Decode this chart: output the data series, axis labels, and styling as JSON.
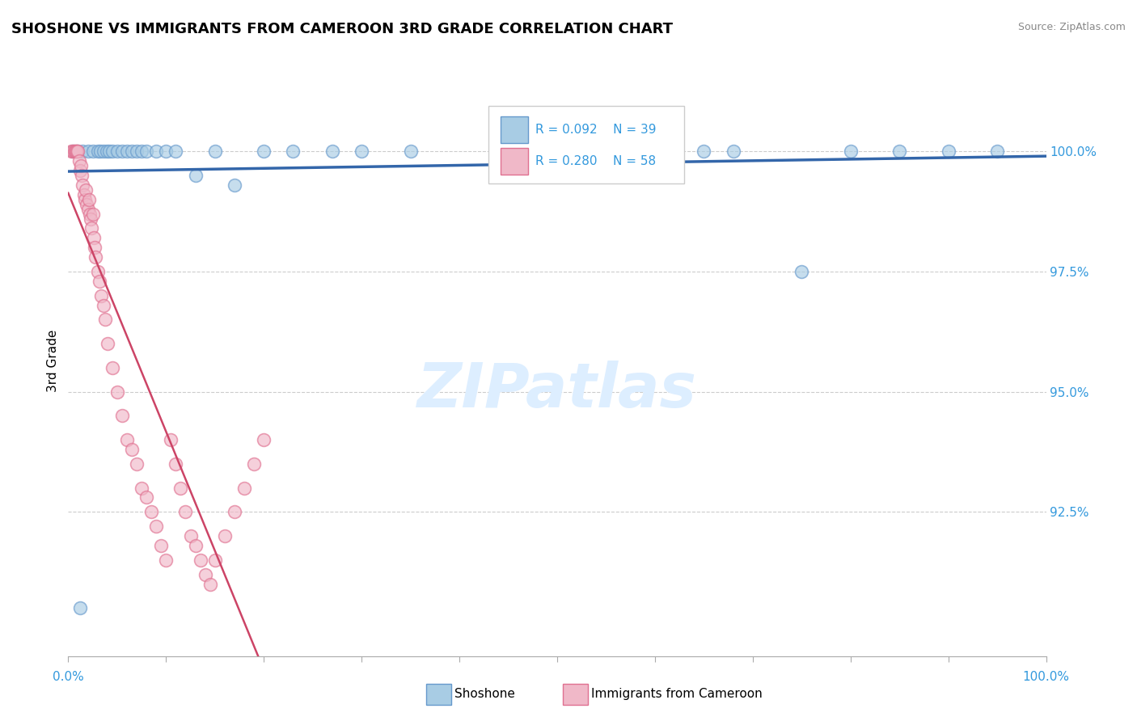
{
  "title": "SHOSHONE VS IMMIGRANTS FROM CAMEROON 3RD GRADE CORRELATION CHART",
  "source": "Source: ZipAtlas.com",
  "ylabel": "3rd Grade",
  "xlim": [
    0.0,
    100.0
  ],
  "ylim": [
    89.5,
    101.8
  ],
  "yticks": [
    92.5,
    95.0,
    97.5,
    100.0
  ],
  "ytick_labels": [
    "92.5%",
    "95.0%",
    "97.5%",
    "100.0%"
  ],
  "blue_R": 0.092,
  "blue_N": 39,
  "pink_R": 0.28,
  "pink_N": 58,
  "blue_label": "Shoshone",
  "pink_label": "Immigrants from Cameroon",
  "blue_color": "#a8cce4",
  "pink_color": "#f0b8c8",
  "blue_edge_color": "#6699cc",
  "pink_edge_color": "#e07090",
  "blue_line_color": "#3366aa",
  "pink_line_color": "#cc4466",
  "legend_text_color": "#3399dd",
  "ytick_color": "#3399dd",
  "xtick_color": "#3399dd",
  "watermark_color": "#ddeeff",
  "blue_x": [
    0.5,
    1.0,
    1.5,
    2.0,
    2.5,
    3.0,
    3.3,
    3.6,
    3.9,
    4.2,
    4.5,
    5.0,
    5.5,
    6.0,
    6.5,
    7.0,
    7.5,
    8.0,
    9.0,
    10.0,
    11.0,
    13.0,
    15.0,
    17.0,
    20.0,
    23.0,
    27.0,
    30.0,
    35.0,
    50.0,
    55.0,
    65.0,
    68.0,
    75.0,
    80.0,
    85.0,
    90.0,
    95.0,
    1.2
  ],
  "blue_y": [
    100.0,
    100.0,
    100.0,
    100.0,
    100.0,
    100.0,
    100.0,
    100.0,
    100.0,
    100.0,
    100.0,
    100.0,
    100.0,
    100.0,
    100.0,
    100.0,
    100.0,
    100.0,
    100.0,
    100.0,
    100.0,
    99.5,
    100.0,
    99.3,
    100.0,
    100.0,
    100.0,
    100.0,
    100.0,
    100.0,
    100.0,
    100.0,
    100.0,
    97.5,
    100.0,
    100.0,
    100.0,
    100.0,
    90.5
  ],
  "pink_x": [
    0.3,
    0.5,
    0.6,
    0.7,
    0.8,
    0.9,
    1.0,
    1.1,
    1.2,
    1.3,
    1.4,
    1.5,
    1.6,
    1.7,
    1.8,
    1.9,
    2.0,
    2.1,
    2.2,
    2.3,
    2.4,
    2.5,
    2.6,
    2.7,
    2.8,
    3.0,
    3.2,
    3.4,
    3.6,
    3.8,
    4.0,
    4.5,
    5.0,
    5.5,
    6.0,
    6.5,
    7.0,
    7.5,
    8.0,
    8.5,
    9.0,
    9.5,
    10.0,
    10.5,
    11.0,
    11.5,
    12.0,
    12.5,
    13.0,
    13.5,
    14.0,
    14.5,
    15.0,
    16.0,
    17.0,
    18.0,
    19.0,
    20.0
  ],
  "pink_y": [
    100.0,
    100.0,
    100.0,
    100.0,
    100.0,
    100.0,
    100.0,
    99.8,
    99.6,
    99.7,
    99.5,
    99.3,
    99.1,
    99.0,
    99.2,
    98.9,
    98.8,
    99.0,
    98.7,
    98.6,
    98.4,
    98.7,
    98.2,
    98.0,
    97.8,
    97.5,
    97.3,
    97.0,
    96.8,
    96.5,
    96.0,
    95.5,
    95.0,
    94.5,
    94.0,
    93.8,
    93.5,
    93.0,
    92.8,
    92.5,
    92.2,
    91.8,
    91.5,
    94.0,
    93.5,
    93.0,
    92.5,
    92.0,
    91.8,
    91.5,
    91.2,
    91.0,
    91.5,
    92.0,
    92.5,
    93.0,
    93.5,
    94.0
  ]
}
